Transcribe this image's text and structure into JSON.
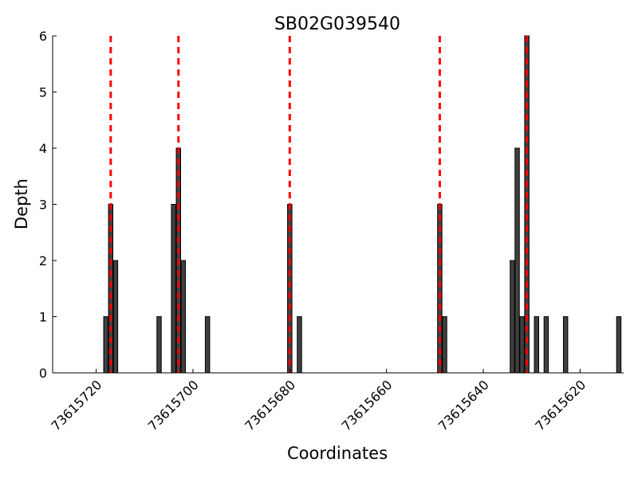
{
  "chart_data": {
    "type": "bar",
    "title": "SB02G039540",
    "xlabel": "Coordinates",
    "ylabel": "Depth",
    "xlim": [
      73615729,
      73615611
    ],
    "ylim": [
      0,
      6
    ],
    "x_ticks": [
      "73615720",
      "73615700",
      "73615680",
      "73615660",
      "73615640",
      "73615620"
    ],
    "x_tick_values": [
      73615720,
      73615700,
      73615680,
      73615660,
      73615640,
      73615620
    ],
    "y_ticks": [
      0,
      1,
      2,
      3,
      4,
      5,
      6
    ],
    "series": [
      {
        "x": [
          73615718,
          73615717,
          73615716,
          73615707,
          73615704,
          73615703,
          73615702,
          73615697,
          73615680,
          73615678,
          73615649,
          73615648,
          73615634,
          73615633,
          73615632,
          73615631,
          73615629,
          73615627,
          73615623,
          73615612
        ],
        "values": [
          1,
          3,
          2,
          1,
          3,
          4,
          2,
          1,
          3,
          1,
          3,
          1,
          2,
          4,
          1,
          6,
          1,
          1,
          1,
          1
        ]
      }
    ],
    "reference_lines": [
      73615717,
      73615703,
      73615680,
      73615649,
      73615631
    ],
    "colors": {
      "bar": "#404040",
      "bar_edge": "#000000",
      "reference_line": "#ff0000"
    },
    "grid": false
  }
}
